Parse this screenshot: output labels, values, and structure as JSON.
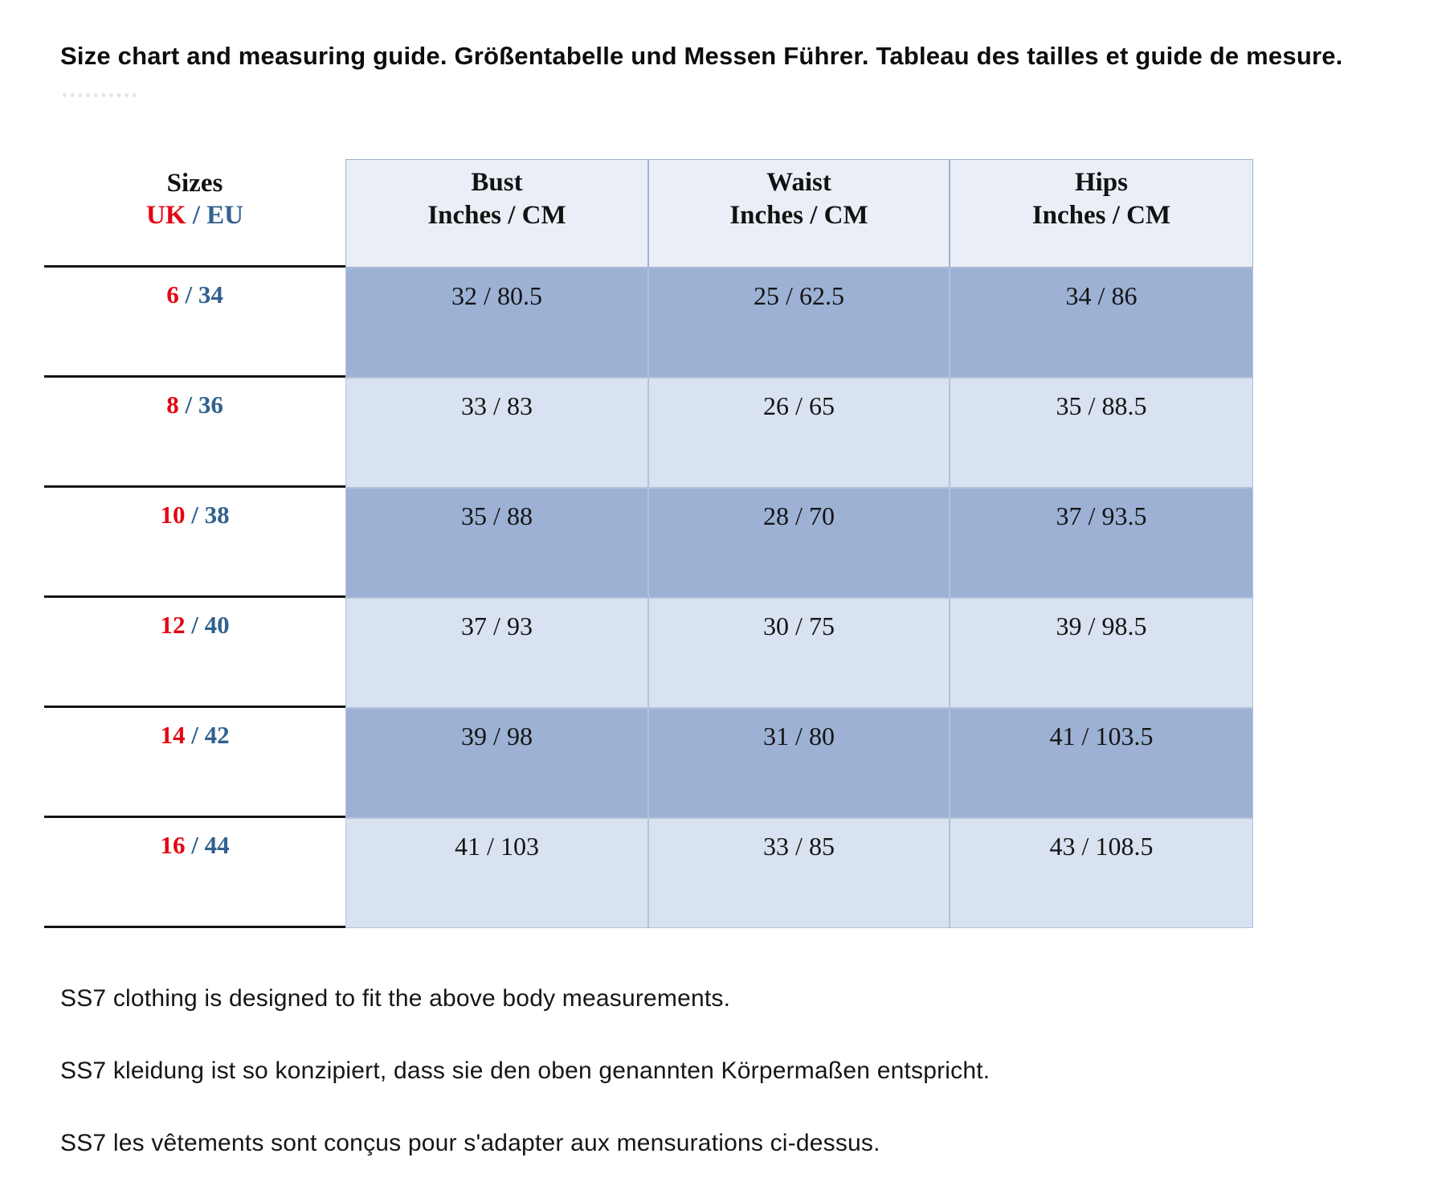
{
  "title": "Size chart and measuring guide. Größentabelle und Messen Führer. Tableau des tailles et guide de mesure.",
  "colors": {
    "uk_red": "#e30613",
    "eu_blue": "#31618f",
    "row_dark": "#9cb1d4",
    "row_light": "#d8e2f1",
    "header_bg": "#eaeff7"
  },
  "table": {
    "separator": " / ",
    "sizes_header": {
      "line1": "Sizes",
      "uk": "UK",
      "eu": "EU"
    },
    "columns": [
      {
        "label": "Bust",
        "sub": "Inches / CM"
      },
      {
        "label": "Waist",
        "sub": "Inches / CM"
      },
      {
        "label": "Hips",
        "sub": "Inches / CM"
      }
    ],
    "rows": [
      {
        "uk": "6",
        "eu": "34",
        "bust": "32 / 80.5",
        "waist": "25 / 62.5",
        "hips": "34 / 86"
      },
      {
        "uk": "8",
        "eu": "36",
        "bust": "33 / 83",
        "waist": "26 / 65",
        "hips": "35 / 88.5"
      },
      {
        "uk": "10",
        "eu": "38",
        "bust": "35 / 88",
        "waist": "28 / 70",
        "hips": "37 / 93.5"
      },
      {
        "uk": "12",
        "eu": "40",
        "bust": "37 / 93",
        "waist": "30 / 75",
        "hips": "39 / 98.5"
      },
      {
        "uk": "14",
        "eu": "42",
        "bust": "39 / 98",
        "waist": "31 / 80",
        "hips": "41 / 103.5"
      },
      {
        "uk": "16",
        "eu": "44",
        "bust": "41 / 103",
        "waist": "33 / 85",
        "hips": "43 / 108.5"
      }
    ]
  },
  "footer": {
    "lines": [
      "SS7 clothing is designed to fit the above body measurements.",
      "SS7 kleidung ist so konzipiert, dass sie den oben genannten Körpermaßen entspricht.",
      "SS7 les vêtements sont conçus pour s'adapter aux mensurations ci-dessus."
    ]
  },
  "chart_data": {
    "type": "table",
    "title": "Size chart and measuring guide. Größentabelle und Messen Führer. Tableau des tailles et guide de mesure.",
    "columns": [
      "Sizes UK / EU",
      "Bust Inches / CM",
      "Waist Inches / CM",
      "Hips Inches / CM"
    ],
    "rows": [
      [
        "6 / 34",
        "32 / 80.5",
        "25 / 62.5",
        "34 / 86"
      ],
      [
        "8 / 36",
        "33 / 83",
        "26 / 65",
        "35 / 88.5"
      ],
      [
        "10 / 38",
        "35 / 88",
        "28 / 70",
        "37 / 93.5"
      ],
      [
        "12 / 40",
        "37 / 93",
        "30 / 75",
        "39 / 98.5"
      ],
      [
        "14 / 42",
        "39 / 98",
        "31 / 80",
        "41 / 103.5"
      ],
      [
        "16 / 44",
        "41 / 103",
        "33 / 85",
        "43 / 108.5"
      ]
    ]
  }
}
